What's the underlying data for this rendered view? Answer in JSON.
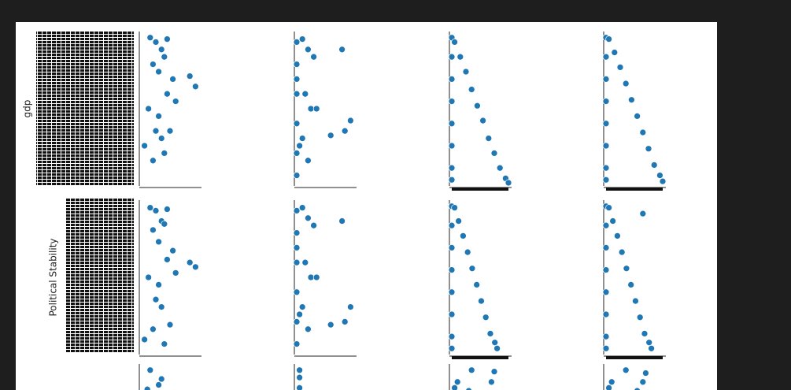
{
  "chart_data": [
    {
      "type": "scatter",
      "ylabel": "gdp",
      "color": "#1f77b4",
      "xlim": [
        0,
        1
      ],
      "ylim": [
        0,
        1
      ],
      "x": [
        0.15,
        0.25,
        0.35,
        0.45,
        0.2,
        0.3,
        0.4,
        0.55,
        0.85,
        0.95,
        0.6,
        0.12,
        0.3,
        0.45,
        0.25,
        0.35,
        0.05,
        0.5,
        0.2,
        0.4
      ],
      "y": [
        0.98,
        0.95,
        0.9,
        0.97,
        0.8,
        0.75,
        0.85,
        0.7,
        0.72,
        0.65,
        0.55,
        0.5,
        0.45,
        0.6,
        0.35,
        0.3,
        0.25,
        0.35,
        0.15,
        0.2
      ]
    },
    {
      "type": "scatter",
      "color": "#1f77b4",
      "xlim": [
        0,
        1
      ],
      "ylim": [
        0,
        1
      ],
      "x": [
        0,
        0,
        0,
        0,
        0,
        0,
        0,
        0.1,
        0.2,
        0.3,
        0.15,
        0.25,
        0.8,
        0.95,
        0.6,
        0.85,
        0.1,
        0.2,
        0.35,
        0.05
      ],
      "y": [
        0.95,
        0.8,
        0.6,
        0.4,
        0.2,
        0.05,
        0.7,
        0.97,
        0.9,
        0.85,
        0.6,
        0.5,
        0.9,
        0.42,
        0.32,
        0.35,
        0.3,
        0.15,
        0.5,
        0.25
      ]
    },
    {
      "type": "scatter",
      "color": "#1f77b4",
      "xlim": [
        0,
        1
      ],
      "ylim": [
        0,
        1
      ],
      "x": [
        0,
        0,
        0,
        0,
        0,
        0,
        0,
        0,
        0.05,
        0.15,
        0.25,
        0.35,
        0.45,
        0.55,
        0.65,
        0.75,
        0.85,
        0.95,
        1
      ],
      "y": [
        0.98,
        0.85,
        0.7,
        0.55,
        0.4,
        0.25,
        0.1,
        0.02,
        0.95,
        0.85,
        0.75,
        0.63,
        0.52,
        0.42,
        0.3,
        0.2,
        0.1,
        0.03,
        0
      ]
    },
    {
      "type": "scatter",
      "color": "#1f77b4",
      "xlim": [
        0,
        1
      ],
      "ylim": [
        0,
        1
      ],
      "x": [
        0,
        0,
        0,
        0,
        0,
        0,
        0,
        0,
        0.05,
        0.15,
        0.25,
        0.35,
        0.45,
        0.55,
        0.65,
        0.75,
        0.85,
        0.95,
        1
      ],
      "y": [
        0.98,
        0.85,
        0.7,
        0.55,
        0.4,
        0.25,
        0.1,
        0.02,
        0.97,
        0.88,
        0.78,
        0.67,
        0.56,
        0.45,
        0.34,
        0.23,
        0.12,
        0.05,
        0.01
      ]
    },
    {
      "type": "scatter",
      "ylabel": "Political Stability",
      "color": "#1f77b4",
      "xlim": [
        0,
        1
      ],
      "ylim": [
        0,
        1
      ],
      "x": [
        0.15,
        0.25,
        0.35,
        0.45,
        0.2,
        0.3,
        0.4,
        0.55,
        0.85,
        0.95,
        0.6,
        0.12,
        0.3,
        0.45,
        0.25,
        0.35,
        0.05,
        0.5,
        0.2,
        0.4
      ],
      "y": [
        0.97,
        0.95,
        0.88,
        0.96,
        0.82,
        0.74,
        0.86,
        0.68,
        0.6,
        0.57,
        0.53,
        0.5,
        0.45,
        0.62,
        0.35,
        0.3,
        0.08,
        0.18,
        0.15,
        0.05
      ]
    },
    {
      "type": "scatter",
      "color": "#1f77b4",
      "xlim": [
        0,
        1
      ],
      "ylim": [
        0,
        1
      ],
      "x": [
        0,
        0,
        0,
        0,
        0,
        0,
        0,
        0.1,
        0.2,
        0.3,
        0.15,
        0.25,
        0.8,
        0.95,
        0.6,
        0.85,
        0.1,
        0.2,
        0.35,
        0.05
      ],
      "y": [
        0.95,
        0.8,
        0.6,
        0.4,
        0.2,
        0.05,
        0.7,
        0.97,
        0.9,
        0.85,
        0.6,
        0.5,
        0.88,
        0.3,
        0.18,
        0.2,
        0.3,
        0.15,
        0.5,
        0.25
      ]
    },
    {
      "type": "scatter",
      "color": "#1f77b4",
      "xlim": [
        0,
        1
      ],
      "ylim": [
        0,
        1
      ],
      "x": [
        0,
        0,
        0,
        0,
        0,
        0,
        0,
        0,
        0.05,
        0.12,
        0.2,
        0.28,
        0.36,
        0.44,
        0.52,
        0.6,
        0.68,
        0.76,
        0.8
      ],
      "y": [
        0.98,
        0.85,
        0.7,
        0.55,
        0.4,
        0.25,
        0.1,
        0.02,
        0.97,
        0.88,
        0.78,
        0.67,
        0.56,
        0.45,
        0.34,
        0.23,
        0.12,
        0.06,
        0.02
      ]
    },
    {
      "type": "scatter",
      "color": "#1f77b4",
      "xlim": [
        0,
        1
      ],
      "ylim": [
        0,
        1
      ],
      "x": [
        0,
        0,
        0,
        0,
        0,
        0,
        0,
        0,
        0.05,
        0.12,
        0.2,
        0.28,
        0.36,
        0.44,
        0.52,
        0.6,
        0.68,
        0.76,
        0.8,
        0.65
      ],
      "y": [
        0.98,
        0.85,
        0.7,
        0.55,
        0.4,
        0.25,
        0.1,
        0.02,
        0.97,
        0.88,
        0.78,
        0.67,
        0.56,
        0.45,
        0.34,
        0.23,
        0.12,
        0.06,
        0.02,
        0.93
      ]
    },
    {
      "type": "scatter",
      "color": "#1f77b4",
      "xlim": [
        0,
        1
      ],
      "ylim": [
        0,
        1
      ],
      "x": [
        0.15,
        0.35,
        0.3,
        0.1
      ],
      "y": [
        0.98,
        0.92,
        0.88,
        0.85
      ]
    },
    {
      "type": "scatter",
      "color": "#1f77b4",
      "xlim": [
        0,
        1
      ],
      "ylim": [
        0,
        1
      ],
      "x": [
        0.05,
        0.05,
        0.05
      ],
      "y": [
        0.98,
        0.93,
        0.86
      ]
    },
    {
      "type": "scatter",
      "color": "#1f77b4",
      "xlim": [
        0,
        1
      ],
      "ylim": [
        0,
        1
      ],
      "x": [
        0.35,
        0.75,
        0.7,
        0.1,
        0.05,
        0.3
      ],
      "y": [
        0.98,
        0.97,
        0.9,
        0.9,
        0.86,
        0.84
      ]
    },
    {
      "type": "scatter",
      "color": "#1f77b4",
      "xlim": [
        0,
        1
      ],
      "ylim": [
        0,
        1
      ],
      "x": [
        0.35,
        0.7,
        0.65,
        0.1,
        0.05,
        0.55
      ],
      "y": [
        0.98,
        0.96,
        0.9,
        0.9,
        0.86,
        0.84
      ]
    }
  ]
}
